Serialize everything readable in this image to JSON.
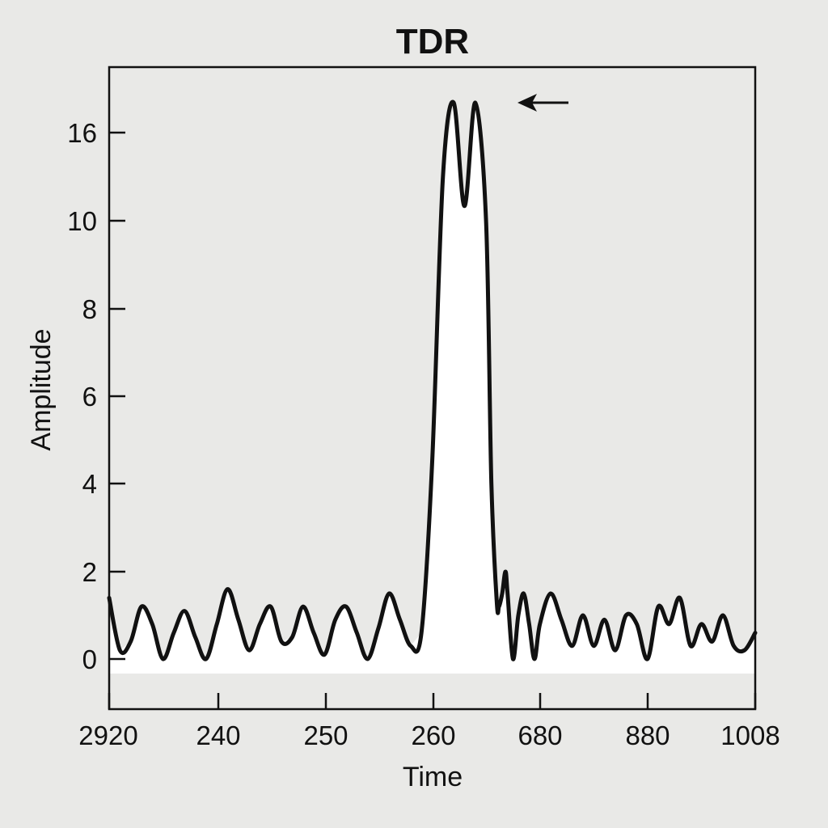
{
  "chart_data": {
    "type": "line",
    "title": "TDR",
    "xlabel": "Time",
    "ylabel": "Amplitude",
    "x_tick_labels": [
      "2920",
      "240",
      "250",
      "260",
      "680",
      "880",
      "1008"
    ],
    "y_tick_labels": [
      "0",
      "2",
      "4",
      "6",
      "8",
      "10",
      "16"
    ],
    "grid": false,
    "legend": "none",
    "line_color": "#111111",
    "fill_color": "#ffffff",
    "annotations": [
      {
        "type": "arrow",
        "target": "peak"
      }
    ],
    "series": [
      {
        "x": [
          0,
          0.1,
          0.2,
          0.3,
          0.4,
          0.5,
          0.6,
          0.7,
          0.8,
          0.9,
          1.0,
          1.1,
          1.2,
          1.3,
          1.4,
          1.5,
          1.6,
          1.7,
          1.8,
          1.9,
          2.0,
          2.1,
          2.2,
          2.3,
          2.4,
          2.5,
          2.6,
          2.7,
          2.8,
          2.9,
          3.0,
          3.1,
          3.2,
          3.3,
          3.4,
          3.5,
          3.55,
          3.6,
          3.62,
          3.65,
          3.68,
          3.7,
          3.75,
          3.8,
          3.85,
          3.9,
          3.95,
          4.0,
          4.1,
          4.2,
          4.3,
          4.4,
          4.5,
          4.6,
          4.7,
          4.8,
          4.9,
          5.0,
          5.1,
          5.2,
          5.3,
          5.4,
          5.5,
          5.6,
          5.7,
          5.8,
          5.9,
          6.0
        ],
        "y": [
          1.4,
          0.2,
          0.4,
          1.2,
          0.8,
          0.0,
          0.6,
          1.1,
          0.5,
          0.0,
          0.8,
          1.6,
          0.9,
          0.2,
          0.8,
          1.2,
          0.4,
          0.5,
          1.2,
          0.6,
          0.1,
          0.9,
          1.2,
          0.6,
          0.0,
          0.7,
          1.5,
          0.9,
          0.3,
          0.6,
          4.5,
          13.0,
          17.0,
          11.0,
          17.0,
          10.0,
          4.0,
          1.3,
          1.2,
          1.5,
          2.0,
          1.5,
          0.0,
          1.0,
          1.5,
          0.8,
          0.0,
          0.8,
          1.5,
          0.9,
          0.3,
          1.0,
          0.3,
          0.9,
          0.2,
          1.0,
          0.8,
          0.0,
          1.2,
          0.8,
          1.4,
          0.3,
          0.8,
          0.4,
          1.0,
          0.3,
          0.2,
          0.6
        ],
        "note_unused": ""
      }
    ]
  }
}
